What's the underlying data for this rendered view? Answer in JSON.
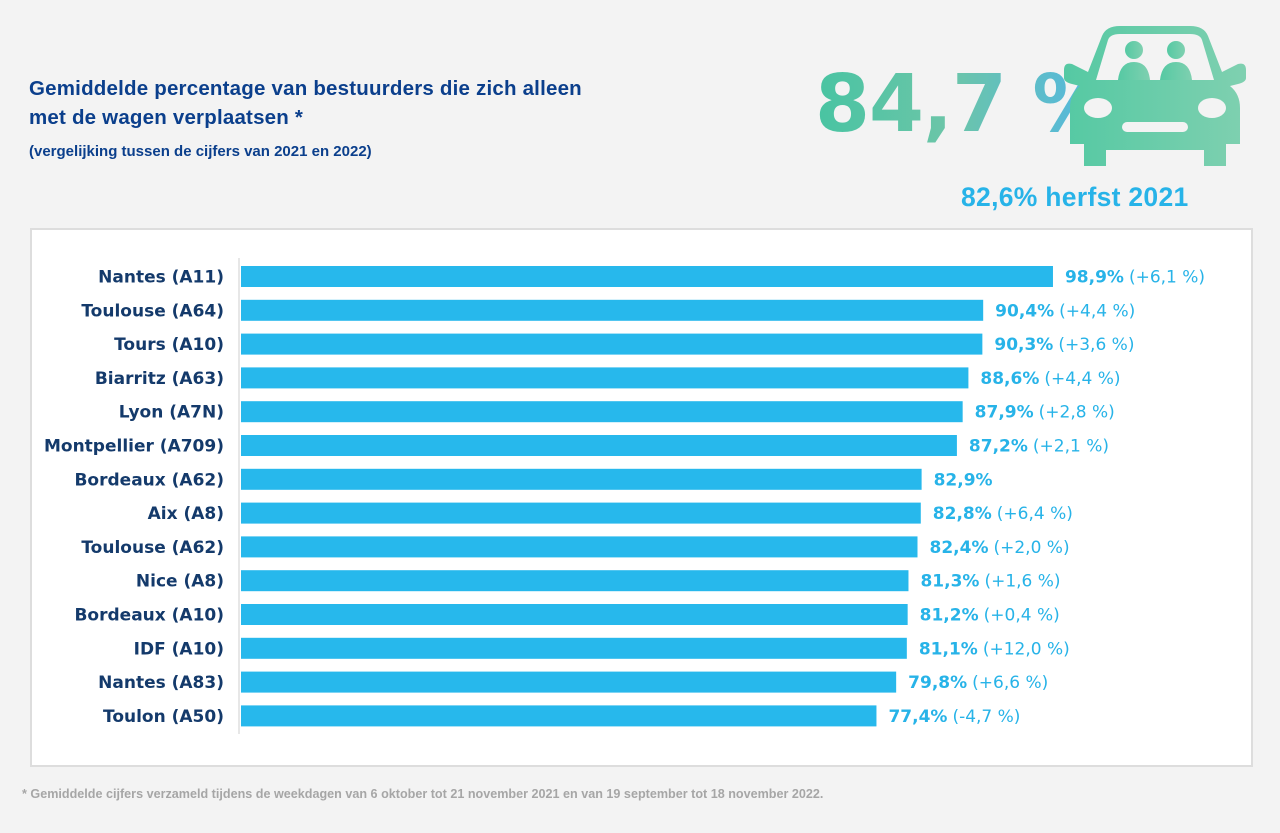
{
  "header": {
    "title_line1": "Gemiddelde percentage van bestuurders die zich alleen",
    "title_line2": "met de wagen verplaatsen *",
    "subtitle": "(vergelijking tussen de cijfers van 2021 en 2022)",
    "big_stat": "84,7 %",
    "previous_stat": "82,6% herfst 2021",
    "icon": "car-with-passengers-icon"
  },
  "colors": {
    "bar": "#27b8ec",
    "value_text": "#27b3e8",
    "label_text": "#143a6b",
    "title_text": "#0b3f8c"
  },
  "chart_data": {
    "type": "bar",
    "orientation": "horizontal",
    "categories": [
      "Nantes (A11)",
      "Toulouse (A64)",
      "Tours (A10)",
      "Biarritz (A63)",
      "Lyon (A7N)",
      "Montpellier (A709)",
      "Bordeaux (A62)",
      "Aix (A8)",
      "Toulouse (A62)",
      "Nice (A8)",
      "Bordeaux (A10)",
      "IDF (A10)",
      "Nantes (A83)",
      "Toulon (A50)"
    ],
    "values": [
      98.9,
      90.4,
      90.3,
      88.6,
      87.9,
      87.2,
      82.9,
      82.8,
      82.4,
      81.3,
      81.2,
      81.1,
      79.8,
      77.4
    ],
    "value_labels": [
      "98,9%",
      "90,4%",
      "90,3%",
      "88,6%",
      "87,9%",
      "87,2%",
      "82,9%",
      "82,8%",
      "82,4%",
      "81,3%",
      "81,2%",
      "81,1%",
      "79,8%",
      "77,4%"
    ],
    "change_labels": [
      "(+6,1 %)",
      "(+4,4 %)",
      "(+3,6 %)",
      "(+4,4 %)",
      "(+2,8 %)",
      "(+2,1 %)",
      "",
      "(+6,4 %)",
      "(+2,0 %)",
      "(+1,6 %)",
      "(+0,4 %)",
      "(+12,0 %)",
      "(+6,6 %)",
      "(-4,7 %)"
    ],
    "xlim": [
      0,
      100
    ],
    "grid": false,
    "legend": "none"
  },
  "footnote": "* Gemiddelde cijfers verzameld tijdens de weekdagen van 6 oktober tot 21 november 2021 en van 19 september tot 18 november 2022."
}
